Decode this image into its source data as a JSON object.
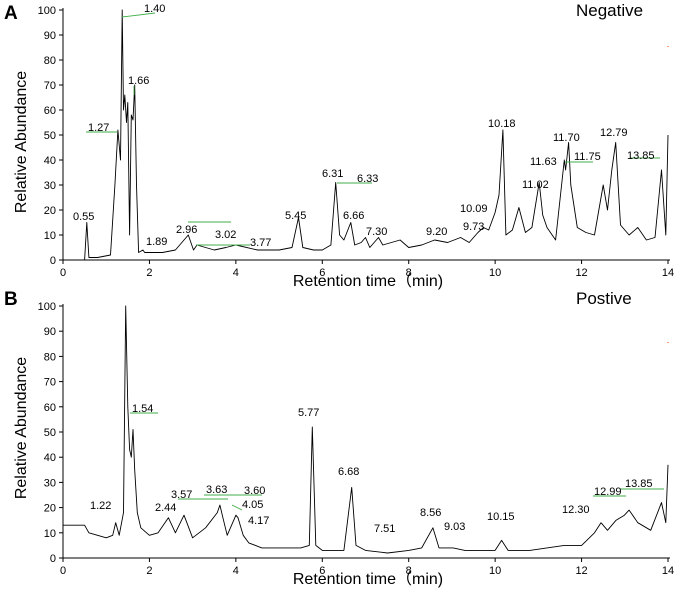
{
  "chart_data": [
    {
      "type": "line",
      "panel_label": "A",
      "ion_mode": "Negative",
      "xlabel": "Retention time（min)",
      "ylabel": "Relative Abundance",
      "xlim": [
        0,
        14
      ],
      "ylim": [
        0,
        100
      ],
      "x_ticks": [
        0,
        2,
        4,
        6,
        8,
        10,
        12,
        14
      ],
      "y_ticks": [
        0,
        10,
        20,
        30,
        40,
        50,
        60,
        70,
        80,
        90,
        100
      ],
      "grid": false,
      "trace": {
        "x": [
          0.0,
          0.5,
          0.55,
          0.6,
          0.8,
          1.1,
          1.2,
          1.27,
          1.33,
          1.37,
          1.4,
          1.43,
          1.47,
          1.5,
          1.54,
          1.58,
          1.62,
          1.66,
          1.7,
          1.75,
          1.85,
          1.89,
          2.0,
          2.3,
          2.6,
          2.9,
          2.96,
          3.02,
          3.1,
          3.3,
          3.5,
          3.77,
          4.0,
          4.5,
          5.0,
          5.3,
          5.45,
          5.55,
          5.8,
          6.0,
          6.2,
          6.31,
          6.4,
          6.5,
          6.66,
          6.75,
          6.9,
          7.0,
          7.1,
          7.3,
          7.4,
          7.6,
          7.8,
          8.0,
          8.3,
          8.6,
          8.9,
          9.2,
          9.4,
          9.6,
          9.73,
          9.85,
          10.0,
          10.09,
          10.18,
          10.25,
          10.4,
          10.55,
          10.7,
          10.85,
          11.02,
          11.1,
          11.2,
          11.4,
          11.6,
          11.63,
          11.7,
          11.75,
          11.9,
          12.1,
          12.3,
          12.5,
          12.6,
          12.7,
          12.79,
          12.9,
          13.1,
          13.3,
          13.5,
          13.7,
          13.85,
          13.95,
          14.0
        ],
        "y": [
          0,
          0,
          15,
          1,
          1,
          2,
          30,
          52,
          40,
          100,
          60,
          66,
          55,
          63,
          10,
          58,
          56,
          70,
          30,
          3,
          4,
          3,
          3,
          3,
          4,
          10,
          7,
          4,
          6,
          5,
          4,
          5,
          6,
          4,
          4,
          5,
          17,
          5,
          4,
          4,
          6,
          31,
          10,
          8,
          15,
          6,
          7,
          9,
          5,
          9,
          6,
          7,
          8,
          5,
          6,
          8,
          7,
          9,
          7,
          11,
          13,
          12,
          19,
          26,
          52,
          10,
          12,
          21,
          11,
          13,
          31,
          18,
          13,
          8,
          40,
          36,
          47,
          30,
          13,
          11,
          10,
          30,
          20,
          36,
          47,
          14,
          10,
          13,
          8,
          9,
          36,
          10,
          50
        ]
      },
      "peak_labels": [
        "0.55",
        "1.27",
        "1.40",
        "1.66",
        "1.89",
        "2.96",
        "3.02",
        "3.77",
        "5.45",
        "6.31",
        "6.33",
        "6.66",
        "7.30",
        "9.20",
        "9.73",
        "10.09",
        "10.18",
        "11.02",
        "11.63",
        "11.70",
        "11.75",
        "12.79",
        "13.85"
      ]
    },
    {
      "type": "line",
      "panel_label": "B",
      "ion_mode": "Postive",
      "xlabel": "Retention time（min)",
      "ylabel": "Relative Abundance",
      "xlim": [
        0,
        14
      ],
      "ylim": [
        0,
        100
      ],
      "x_ticks": [
        0,
        2,
        4,
        6,
        8,
        10,
        12,
        14
      ],
      "y_ticks": [
        0,
        10,
        20,
        30,
        40,
        50,
        60,
        70,
        80,
        90,
        100
      ],
      "grid": false,
      "trace": {
        "x": [
          0.0,
          0.5,
          0.6,
          1.0,
          1.15,
          1.22,
          1.3,
          1.4,
          1.45,
          1.5,
          1.54,
          1.58,
          1.62,
          1.66,
          1.72,
          1.8,
          2.0,
          2.2,
          2.44,
          2.6,
          2.8,
          3.0,
          3.3,
          3.57,
          3.63,
          3.7,
          3.8,
          4.0,
          4.05,
          4.17,
          4.3,
          4.6,
          5.0,
          5.5,
          5.7,
          5.77,
          5.85,
          6.0,
          6.5,
          6.68,
          6.78,
          7.0,
          7.51,
          8.0,
          8.3,
          8.56,
          8.7,
          9.03,
          9.3,
          9.6,
          10.0,
          10.15,
          10.3,
          10.8,
          11.2,
          11.6,
          12.0,
          12.3,
          12.45,
          12.6,
          12.8,
          12.99,
          13.1,
          13.3,
          13.6,
          13.85,
          13.95,
          14.0
        ],
        "y": [
          13,
          13,
          10,
          8,
          9,
          14,
          9,
          18,
          100,
          60,
          43,
          40,
          51,
          35,
          18,
          12,
          9,
          10,
          16,
          10,
          17,
          8,
          12,
          18,
          21,
          16,
          9,
          17,
          16,
          9,
          6,
          4,
          4,
          4,
          5,
          52,
          5,
          3,
          3,
          28,
          5,
          3,
          2,
          3,
          4,
          12,
          4,
          4,
          3,
          3,
          3,
          7,
          3,
          3,
          4,
          5,
          5,
          10,
          14,
          11,
          15,
          17,
          19,
          14,
          11,
          22,
          14,
          37
        ]
      },
      "peak_labels": [
        "1.22",
        "1.54",
        "2.44",
        "3.57",
        "3.63",
        "3.60",
        "4.05",
        "4.17",
        "5.77",
        "6.68",
        "7.51",
        "8.56",
        "9.03",
        "10.15",
        "12.30",
        "12.99",
        "13.85"
      ]
    }
  ]
}
